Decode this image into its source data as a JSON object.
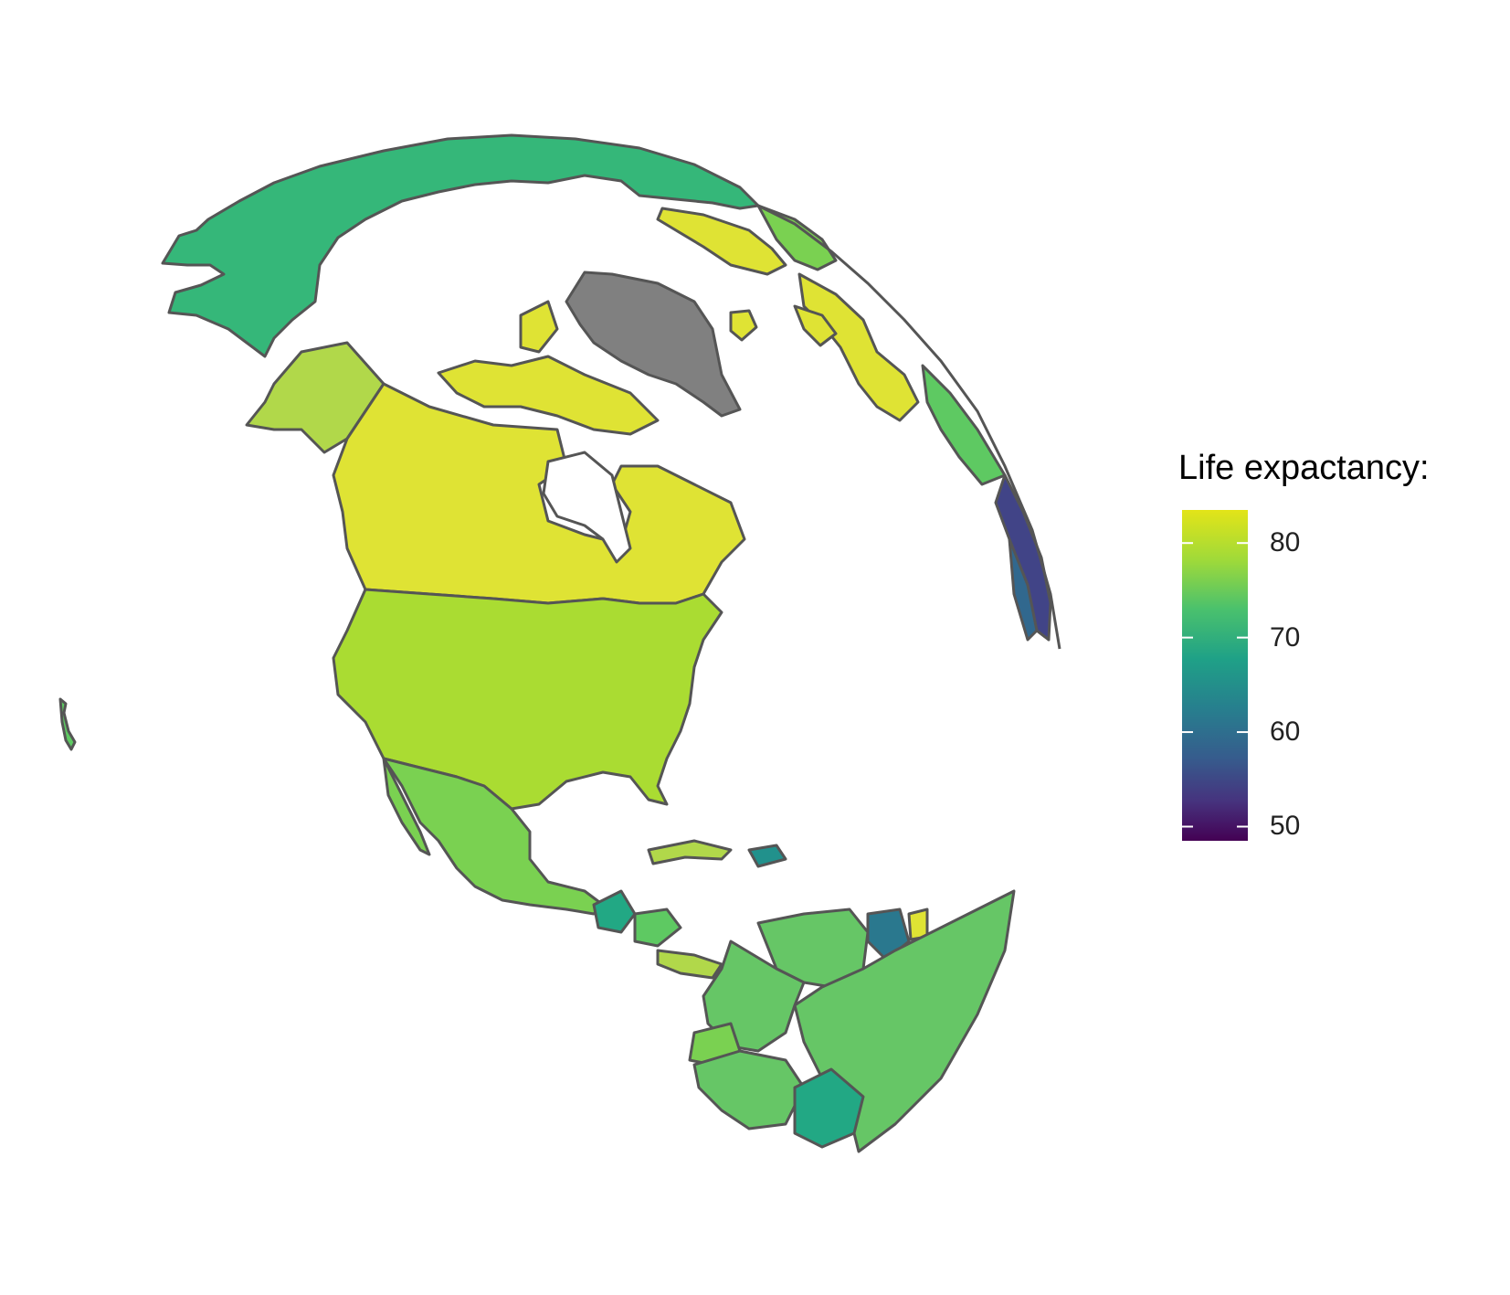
{
  "legend": {
    "title": "Life expactancy:",
    "ticks": [
      {
        "value": 80,
        "label": "80"
      },
      {
        "value": 70,
        "label": "70"
      },
      {
        "value": 60,
        "label": "60"
      },
      {
        "value": 50,
        "label": "50"
      }
    ],
    "range": [
      48.5,
      83.5
    ]
  },
  "colors": {
    "yellow": "#dfe334",
    "yellow_green": "#b1d84a",
    "light_green": "#aadc32",
    "green_mex": "#7ad151",
    "green": "#66c666",
    "green_sa": "#5ec962",
    "teal_green": "#35b779",
    "teal": "#22a884",
    "dark_teal": "#21918c",
    "blue_teal": "#2a788e",
    "dark_blue": "#31688e",
    "navy": "#414487",
    "gray": "#808080",
    "border": "#555555",
    "viridis_top": "#fde725",
    "viridis_bottom": "#440154"
  }
}
